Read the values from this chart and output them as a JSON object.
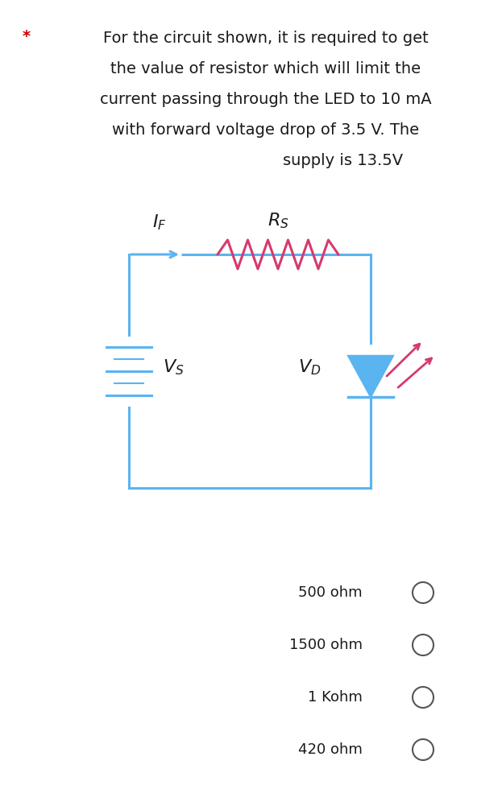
{
  "background_color": "#ffffff",
  "question_lines": [
    "For the circuit shown, it is required to get",
    "the value of resistor which will limit the",
    "current passing through the LED to 10 mA",
    "with forward voltage drop of 3.5 V. The",
    "supply is 13.5V"
  ],
  "star_color": "#cc0000",
  "circuit_color": "#5ab4f0",
  "resistor_color": "#d63a6e",
  "led_emission_color": "#d63a6e",
  "text_color": "#1a1a1a",
  "wire_lw": 2.2,
  "res_lw": 2.2,
  "options": [
    "500 ohm",
    "1500 ohm",
    "1 Kohm",
    "420 ohm"
  ],
  "option_fontsize": 13,
  "question_fontsize": 14,
  "label_fontsize": 16
}
